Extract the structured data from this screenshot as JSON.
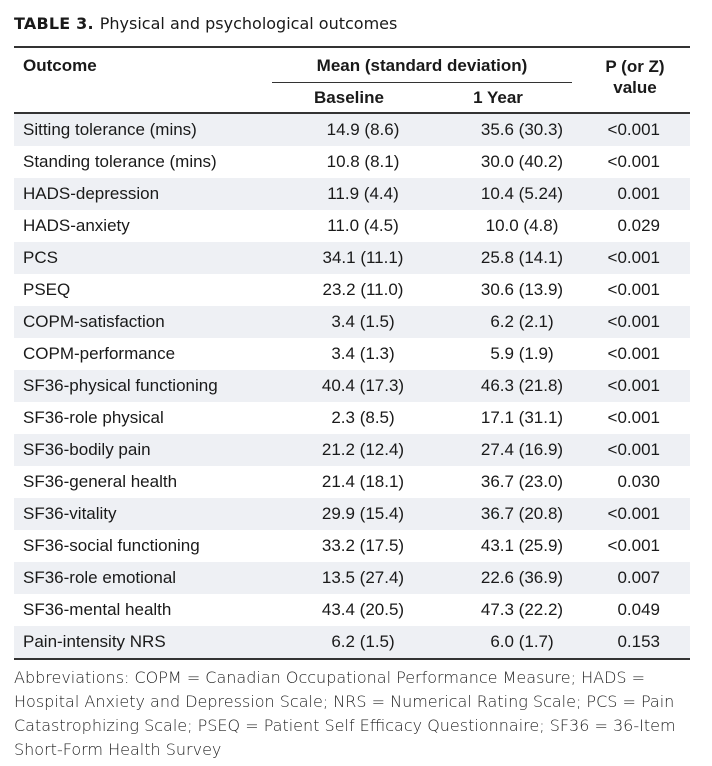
{
  "table": {
    "label": "TABLE 3.",
    "title": "Physical and psychological outcomes",
    "headers": {
      "outcome": "Outcome",
      "mean_sd": "Mean (standard deviation)",
      "baseline": "Baseline",
      "year1": "1 Year",
      "p_line1": "P (or Z)",
      "p_line2": "value"
    },
    "rows": [
      {
        "outcome": "Sitting tolerance (mins)",
        "baseline": "14.9 (8.6)",
        "year1": "35.6 (30.3)",
        "p": "<0.001"
      },
      {
        "outcome": "Standing tolerance (mins)",
        "baseline": "10.8 (8.1)",
        "year1": "30.0 (40.2)",
        "p": "<0.001"
      },
      {
        "outcome": "HADS-depression",
        "baseline": "11.9 (4.4)",
        "year1": "10.4 (5.24)",
        "p": "0.001"
      },
      {
        "outcome": "HADS-anxiety",
        "baseline": "11.0 (4.5)",
        "year1": "10.0 (4.8)",
        "p": "0.029"
      },
      {
        "outcome": "PCS",
        "baseline": "34.1 (11.1)",
        "year1": "25.8 (14.1)",
        "p": "<0.001"
      },
      {
        "outcome": "PSEQ",
        "baseline": "23.2 (11.0)",
        "year1": "30.6 (13.9)",
        "p": "<0.001"
      },
      {
        "outcome": "COPM-satisfaction",
        "baseline": "3.4 (1.5)",
        "year1": "6.2 (2.1)",
        "p": "<0.001"
      },
      {
        "outcome": "COPM-performance",
        "baseline": "3.4 (1.3)",
        "year1": "5.9 (1.9)",
        "p": "<0.001"
      },
      {
        "outcome": "SF36-physical functioning",
        "baseline": "40.4 (17.3)",
        "year1": "46.3 (21.8)",
        "p": "<0.001"
      },
      {
        "outcome": "SF36-role physical",
        "baseline": "2.3 (8.5)",
        "year1": "17.1 (31.1)",
        "p": "<0.001"
      },
      {
        "outcome": "SF36-bodily pain",
        "baseline": "21.2 (12.4)",
        "year1": "27.4 (16.9)",
        "p": "<0.001"
      },
      {
        "outcome": "SF36-general health",
        "baseline": "21.4 (18.1)",
        "year1": "36.7 (23.0)",
        "p": "0.030"
      },
      {
        "outcome": "SF36-vitality",
        "baseline": "29.9 (15.4)",
        "year1": "36.7 (20.8)",
        "p": "<0.001"
      },
      {
        "outcome": "SF36-social functioning",
        "baseline": "33.2 (17.5)",
        "year1": "43.1 (25.9)",
        "p": "<0.001"
      },
      {
        "outcome": "SF36-role emotional",
        "baseline": "13.5 (27.4)",
        "year1": "22.6 (36.9)",
        "p": "0.007"
      },
      {
        "outcome": "SF36-mental health",
        "baseline": "43.4 (20.5)",
        "year1": "47.3 (22.2)",
        "p": "0.049"
      },
      {
        "outcome": "Pain-intensity NRS",
        "baseline": "6.2 (1.5)",
        "year1": "6.0 (1.7)",
        "p": "0.153"
      }
    ],
    "footnote": "Abbreviations: COPM = Canadian Occupational Performance Measure; HADS = Hospital Anxiety and Depression Scale; NRS = Numerical Rating Scale; PCS = Pain Catastrophizing Scale; PSEQ = Patient Self Efficacy Questionnaire; SF36 = 36-Item Short-Form Health Survey",
    "colors": {
      "shade": "#eef0f4",
      "rule": "#333333"
    }
  }
}
